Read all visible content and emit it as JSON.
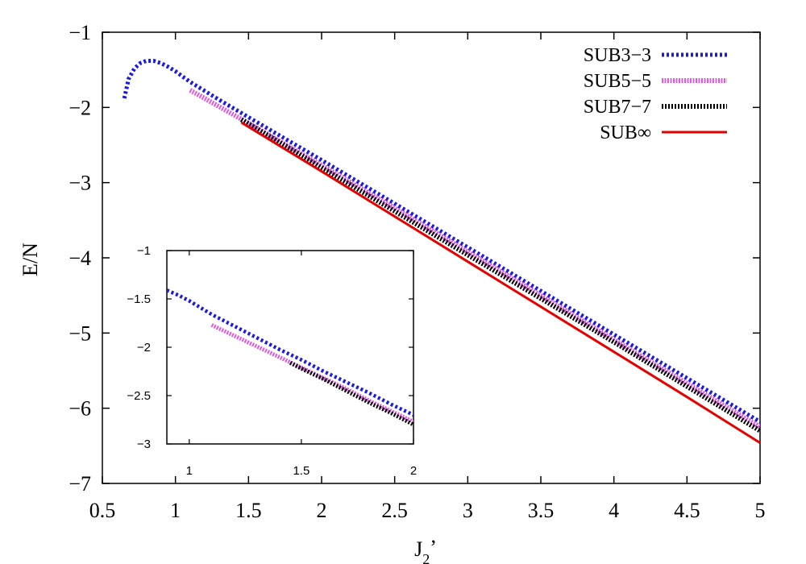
{
  "chart_data": [
    {
      "type": "line",
      "xlabel": "J",
      "xlabel_sub": "2",
      "xlabel_suffix": "’",
      "ylabel": "E/N",
      "xlim": [
        0.5,
        5
      ],
      "ylim": [
        -7,
        -1
      ],
      "xticks": [
        0.5,
        1,
        1.5,
        2,
        2.5,
        3,
        3.5,
        4,
        4.5,
        5
      ],
      "xtick_labels": [
        "0.5",
        "1",
        "1.5",
        "2",
        "2.5",
        "3",
        "3.5",
        "4",
        "4.5",
        "5"
      ],
      "yticks": [
        -7,
        -6,
        -5,
        -4,
        -3,
        -2,
        -1
      ],
      "ytick_labels": [
        "−7",
        "−6",
        "−5",
        "−4",
        "−3",
        "−2",
        "−1"
      ],
      "grid": false,
      "legend_position": "top-right",
      "series": [
        {
          "name": "SUB3−3",
          "color": "#1a1ae6",
          "style": "dotted",
          "x": [
            0.65,
            0.68,
            0.72,
            0.76,
            0.8,
            0.85,
            0.9,
            0.95,
            1.0,
            1.05,
            1.1,
            1.2,
            1.3,
            1.5,
            2.0,
            2.5,
            3.0,
            3.5,
            4.0,
            4.5,
            5.0
          ],
          "y": [
            -1.88,
            -1.62,
            -1.48,
            -1.41,
            -1.38,
            -1.38,
            -1.41,
            -1.46,
            -1.52,
            -1.59,
            -1.66,
            -1.78,
            -1.9,
            -2.13,
            -2.7,
            -3.28,
            -3.86,
            -4.44,
            -5.02,
            -5.6,
            -6.18
          ]
        },
        {
          "name": "SUB5−5",
          "color": "#e05ae0",
          "style": "dotted",
          "x": [
            1.1,
            1.3,
            1.5,
            2.0,
            2.5,
            3.0,
            3.5,
            4.0,
            4.5,
            5.0
          ],
          "y": [
            -1.77,
            -1.99,
            -2.21,
            -2.77,
            -3.34,
            -3.92,
            -4.5,
            -5.09,
            -5.67,
            -6.25
          ]
        },
        {
          "name": "SUB7−7",
          "color": "#000000",
          "style": "dotted",
          "x": [
            1.45,
            1.7,
            2.0,
            2.5,
            3.0,
            3.5,
            4.0,
            4.5,
            5.0
          ],
          "y": [
            -2.16,
            -2.45,
            -2.8,
            -3.38,
            -3.96,
            -4.54,
            -5.12,
            -5.71,
            -6.3
          ]
        },
        {
          "name": "SUB∞",
          "color": "#e60000",
          "style": "solid",
          "x": [
            1.45,
            2.0,
            2.5,
            3.0,
            3.5,
            4.0,
            4.5,
            5.0
          ],
          "y": [
            -2.2,
            -2.85,
            -3.45,
            -4.05,
            -4.65,
            -5.25,
            -5.85,
            -6.46
          ]
        }
      ]
    },
    {
      "type": "line",
      "role": "inset",
      "xlim": [
        0.9,
        2
      ],
      "ylim": [
        -3,
        -1
      ],
      "xticks": [
        1,
        1.5,
        2
      ],
      "xtick_labels": [
        "1",
        "1.5",
        "2"
      ],
      "yticks": [
        -3,
        -2.5,
        -2,
        -1.5,
        -1
      ],
      "ytick_labels": [
        "−3",
        "−2.5",
        "−2",
        "−1.5",
        "−1"
      ],
      "series": [
        {
          "name": "SUB3−3",
          "color": "#1a1ae6",
          "style": "dotted",
          "x": [
            0.9,
            0.95,
            1.0,
            1.05,
            1.1,
            1.2,
            1.3,
            1.4,
            1.5,
            1.6,
            1.7,
            1.8,
            1.9,
            2.0
          ],
          "y": [
            -1.41,
            -1.46,
            -1.52,
            -1.59,
            -1.66,
            -1.78,
            -1.9,
            -2.02,
            -2.13,
            -2.25,
            -2.36,
            -2.47,
            -2.59,
            -2.7
          ]
        },
        {
          "name": "SUB5−5",
          "color": "#e05ae0",
          "style": "dotted",
          "x": [
            1.1,
            1.2,
            1.3,
            1.4,
            1.5,
            1.6,
            1.7,
            1.8,
            1.9,
            2.0
          ],
          "y": [
            -1.77,
            -1.88,
            -1.99,
            -2.1,
            -2.21,
            -2.32,
            -2.43,
            -2.55,
            -2.66,
            -2.77
          ]
        },
        {
          "name": "SUB7−7",
          "color": "#000000",
          "style": "dotted",
          "x": [
            1.45,
            1.5,
            1.6,
            1.7,
            1.8,
            1.9,
            2.0
          ],
          "y": [
            -2.16,
            -2.22,
            -2.33,
            -2.45,
            -2.57,
            -2.68,
            -2.8
          ]
        }
      ]
    }
  ]
}
